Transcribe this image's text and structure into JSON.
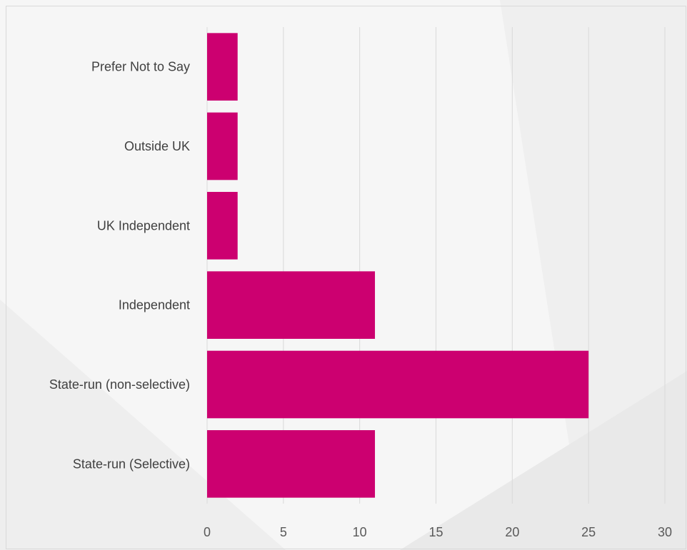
{
  "chart_data": {
    "type": "bar",
    "orientation": "horizontal",
    "categories": [
      "Prefer Not to Say",
      "Outside UK",
      "UK Independent",
      "Independent",
      "State-run (non-selective)",
      "State-run (Selective)"
    ],
    "values": [
      2,
      2,
      2,
      11,
      25,
      11
    ],
    "xticks": [
      "0",
      "5",
      "10",
      "15",
      "20",
      "25",
      "30"
    ],
    "xlim": [
      0,
      30
    ],
    "grid": true,
    "legend": "none",
    "bar_color": "#cc0070",
    "grid_color": "#d9d9d9"
  }
}
